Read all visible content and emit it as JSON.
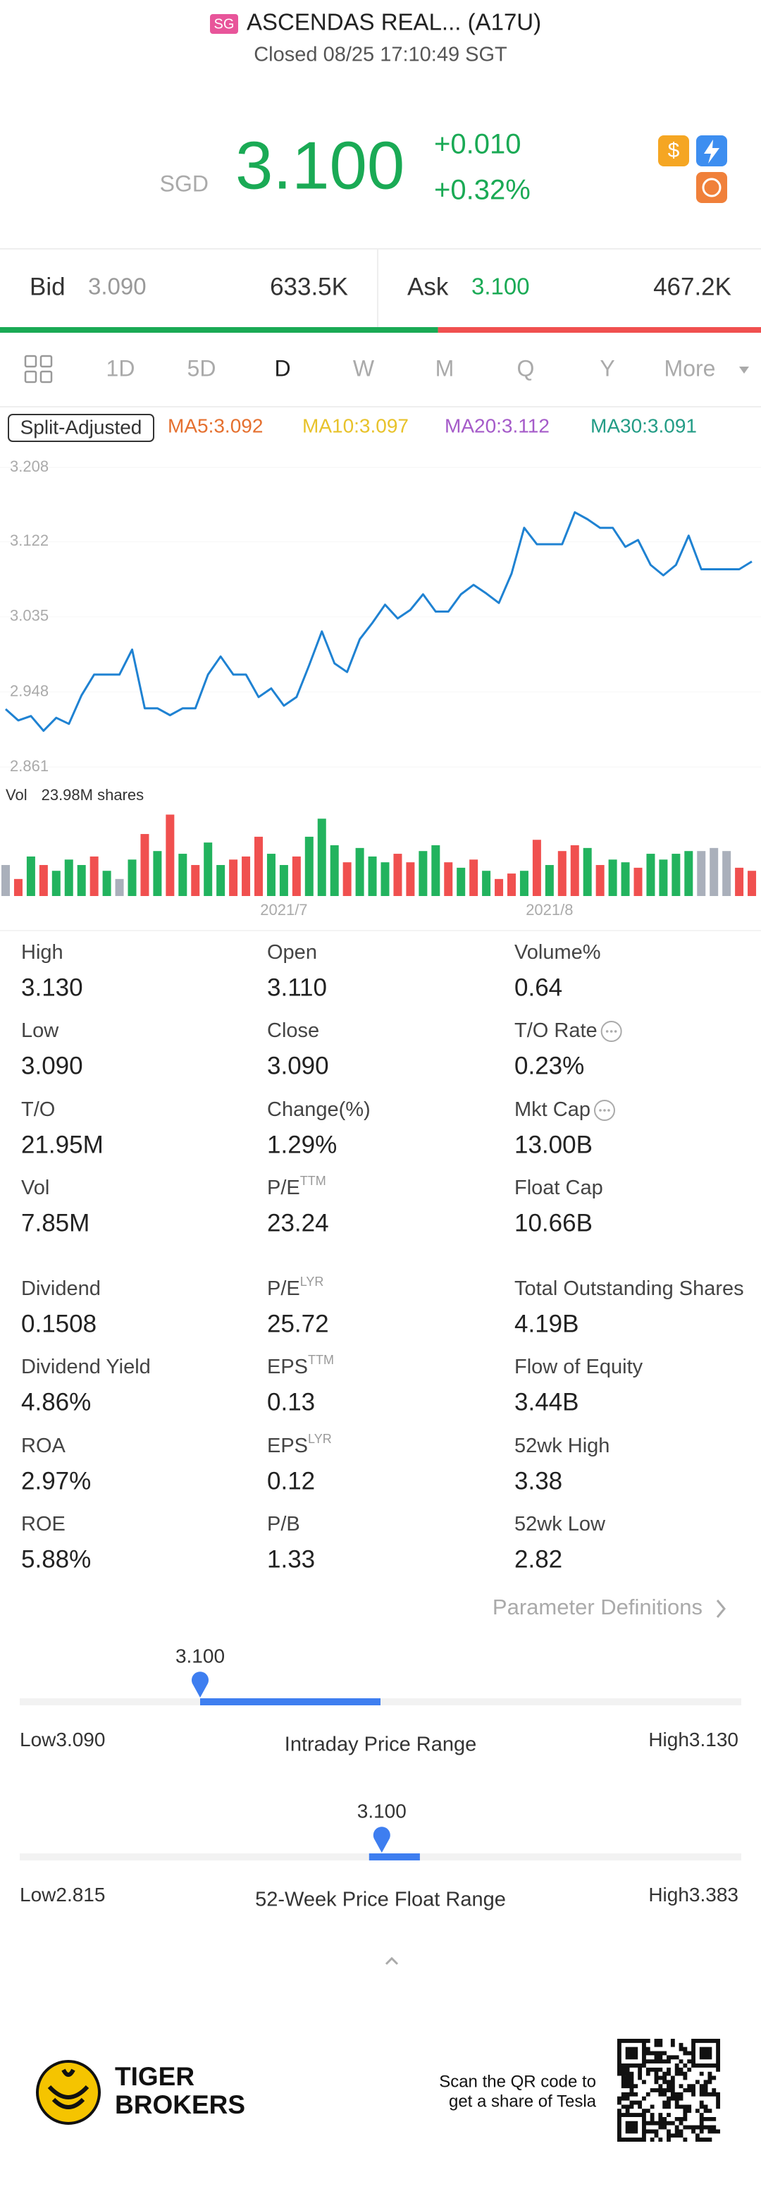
{
  "header": {
    "badge": "SG",
    "name": "ASCENDAS REAL... (A17U)",
    "status": "Closed 08/25 17:10:49 SGT"
  },
  "quote": {
    "currency": "SGD",
    "price": "3.100",
    "change": "+0.010",
    "change_pct": "+0.32%"
  },
  "bid": {
    "label": "Bid",
    "price": "3.090",
    "size": "633.5K"
  },
  "ask": {
    "label": "Ask",
    "price": "3.100",
    "size": "467.2K"
  },
  "periods": {
    "items": [
      "1D",
      "5D",
      "D",
      "W",
      "M",
      "Q",
      "Y",
      "More"
    ],
    "active": 2
  },
  "indicators": {
    "mode": "Split-Adjusted",
    "ma": [
      {
        "text": "MA5:3.092",
        "color": "#e5702f"
      },
      {
        "text": "MA10:3.097",
        "color": "#e8c22a"
      },
      {
        "text": "MA20:3.112",
        "color": "#a55bc9"
      },
      {
        "text": "MA30:3.091",
        "color": "#239c86"
      }
    ]
  },
  "chart_data": [
    {
      "type": "line",
      "color": "#1f82d2",
      "ylim": [
        2.861,
        3.208
      ],
      "yticks": [
        3.208,
        3.122,
        3.035,
        2.948,
        2.861
      ],
      "values": [
        2.928,
        2.915,
        2.92,
        2.903,
        2.918,
        2.911,
        2.944,
        2.968,
        2.968,
        2.968,
        2.997,
        2.929,
        2.929,
        2.921,
        2.929,
        2.929,
        2.968,
        2.989,
        2.968,
        2.968,
        2.942,
        2.952,
        2.932,
        2.942,
        2.979,
        3.018,
        2.981,
        2.971,
        3.009,
        3.028,
        3.049,
        3.033,
        3.043,
        3.061,
        3.041,
        3.041,
        3.061,
        3.072,
        3.062,
        3.051,
        3.085,
        3.138,
        3.119,
        3.119,
        3.119,
        3.156,
        3.148,
        3.138,
        3.138,
        3.116,
        3.124,
        3.095,
        3.083,
        3.095,
        3.129,
        3.09,
        3.09,
        3.09,
        3.09,
        3.099
      ]
    },
    {
      "type": "bar",
      "label": "Vol",
      "value_text": "23.98M shares",
      "ylim": [
        0,
        24
      ],
      "categories": [
        null,
        null,
        null,
        null,
        null,
        null,
        null,
        null,
        null,
        null,
        null,
        null,
        null,
        null,
        null,
        null,
        null,
        null,
        null,
        null,
        null,
        null,
        "2021/7",
        null,
        null,
        null,
        null,
        null,
        null,
        null,
        null,
        null,
        null,
        null,
        null,
        null,
        null,
        null,
        null,
        null,
        null,
        null,
        null,
        "2021/8",
        null,
        null,
        null,
        null,
        null,
        null,
        null,
        null,
        null,
        null,
        null,
        null,
        null,
        null,
        null,
        null
      ],
      "values": [
        9.1,
        5.0,
        11.6,
        9.1,
        7.4,
        10.7,
        9.1,
        11.6,
        7.4,
        5.0,
        10.7,
        18.2,
        13.2,
        23.9,
        12.4,
        9.1,
        15.7,
        9.1,
        10.7,
        11.6,
        17.4,
        12.4,
        9.1,
        11.6,
        17.4,
        22.7,
        14.9,
        9.9,
        14.1,
        11.6,
        9.9,
        12.4,
        9.9,
        13.2,
        14.9,
        9.9,
        8.3,
        10.7,
        7.4,
        5.0,
        6.6,
        7.4,
        16.5,
        9.1,
        13.2,
        14.9,
        14.1,
        9.1,
        10.7,
        9.9,
        8.3,
        12.4,
        10.7,
        12.4,
        13.2,
        13.2,
        14.1,
        13.2,
        8.3,
        7.4
      ],
      "colors": [
        "#aab0bb",
        "#f0504f",
        "#22b35e",
        "#f0504f",
        "#22b35e",
        "#22b35e",
        "#22b35e",
        "#f0504f",
        "#22b35e",
        "#aab0bb",
        "#22b35e",
        "#f0504f",
        "#22b35e",
        "#f0504f",
        "#22b35e",
        "#f0504f",
        "#22b35e",
        "#22b35e",
        "#f0504f",
        "#f0504f",
        "#f0504f",
        "#22b35e",
        "#22b35e",
        "#f0504f",
        "#22b35e",
        "#22b35e",
        "#22b35e",
        "#f0504f",
        "#22b35e",
        "#22b35e",
        "#22b35e",
        "#f0504f",
        "#f0504f",
        "#22b35e",
        "#22b35e",
        "#f0504f",
        "#22b35e",
        "#f0504f",
        "#22b35e",
        "#f0504f",
        "#f0504f",
        "#22b35e",
        "#f0504f",
        "#22b35e",
        "#f0504f",
        "#f0504f",
        "#22b35e",
        "#f0504f",
        "#22b35e",
        "#22b35e",
        "#f0504f",
        "#22b35e",
        "#22b35e",
        "#22b35e",
        "#22b35e",
        "#aab0bb",
        "#aab0bb",
        "#aab0bb",
        "#f0504f",
        "#f0504f"
      ]
    }
  ],
  "stats": [
    [
      {
        "label": "High",
        "value": "3.130"
      },
      {
        "label": "Open",
        "value": "3.110"
      },
      {
        "label": "Volume%",
        "value": "0.64"
      }
    ],
    [
      {
        "label": "Low",
        "value": "3.090"
      },
      {
        "label": "Close",
        "value": "3.090"
      },
      {
        "label": "T/O Rate",
        "info": true,
        "value": "0.23%"
      }
    ],
    [
      {
        "label": "T/O",
        "value": "21.95M"
      },
      {
        "label": "Change(%)",
        "value": "1.29%"
      },
      {
        "label": "Mkt Cap",
        "info": true,
        "value": "13.00B"
      }
    ],
    [
      {
        "label": "Vol",
        "value": "7.85M"
      },
      {
        "label": "P/E",
        "sup": "TTM",
        "value": "23.24"
      },
      {
        "label": "Float Cap",
        "value": "10.66B"
      }
    ],
    [
      {
        "label": "Dividend",
        "value": "0.1508"
      },
      {
        "label": "P/E",
        "sup": "LYR",
        "value": "25.72"
      },
      {
        "label": "Total Outstanding Shares",
        "value": "4.19B"
      }
    ],
    [
      {
        "label": "Dividend Yield",
        "value": "4.86%"
      },
      {
        "label": "EPS",
        "sup": "TTM",
        "value": "0.13"
      },
      {
        "label": "Flow of Equity",
        "value": "3.44B"
      }
    ],
    [
      {
        "label": "ROA",
        "value": "2.97%"
      },
      {
        "label": "EPS",
        "sup": "LYR",
        "value": "0.12"
      },
      {
        "label": "52wk High",
        "value": "3.38"
      }
    ],
    [
      {
        "label": "ROE",
        "value": "5.88%"
      },
      {
        "label": "P/B",
        "value": "1.33"
      },
      {
        "label": "52wk Low",
        "value": "2.82"
      }
    ]
  ],
  "parameter_link": "Parameter Definitions",
  "ranges": [
    {
      "price": "3.100",
      "low_label": "Low",
      "low": "3.090",
      "title": "Intraday Price Range",
      "high_label": "High",
      "high": "3.130"
    },
    {
      "price": "3.100",
      "low_label": "Low",
      "low": "2.815",
      "title": "52-Week Price Float Range",
      "high_label": "High",
      "high": "3.383"
    }
  ],
  "footer": {
    "brand": [
      "TIGER",
      "BROKERS"
    ],
    "promo": [
      "Scan the QR code to",
      "get a share of Tesla"
    ]
  }
}
